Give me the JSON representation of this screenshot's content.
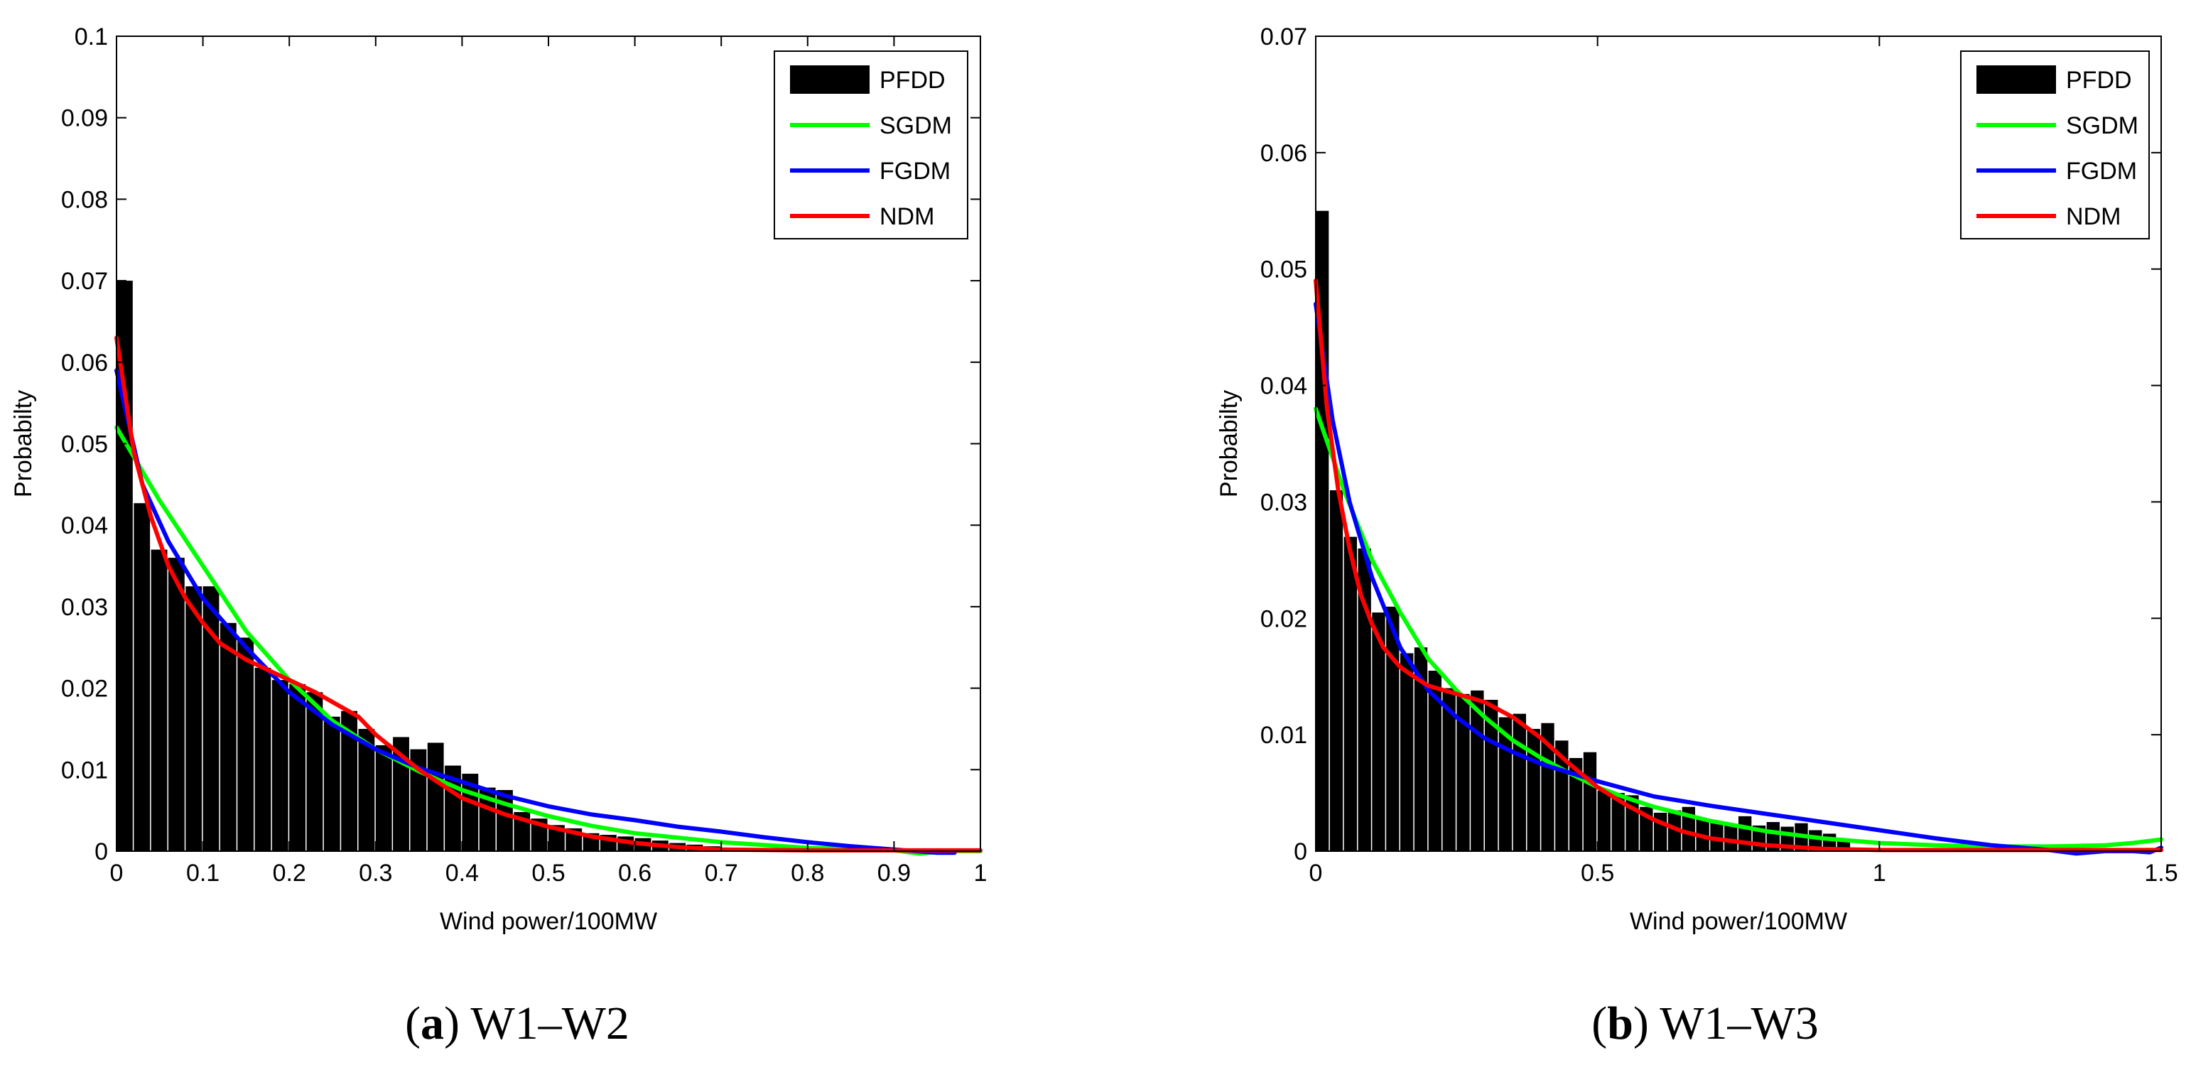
{
  "chart_data": [
    {
      "type": "bar+line",
      "panel_letter": "a",
      "caption": "W1–W2",
      "title": "",
      "xlabel": "Wind power/100MW",
      "ylabel": "Probabilty",
      "xlim": [
        0,
        1
      ],
      "ylim": [
        0,
        0.1
      ],
      "xticks": [
        0,
        0.1,
        0.2,
        0.3,
        0.4,
        0.5,
        0.6,
        0.7,
        0.8,
        0.9,
        1
      ],
      "xtick_labels": [
        "0",
        "0.1",
        "0.2",
        "0.3",
        "0.4",
        "0.5",
        "0.6",
        "0.7",
        "0.8",
        "0.9",
        "1"
      ],
      "yticks": [
        0,
        0.01,
        0.02,
        0.03,
        0.04,
        0.05,
        0.06,
        0.07,
        0.08,
        0.09,
        0.1
      ],
      "ytick_labels": [
        "0",
        "0.01",
        "0.02",
        "0.03",
        "0.04",
        "0.05",
        "0.06",
        "0.07",
        "0.08",
        "0.09",
        "0.1"
      ],
      "legend": {
        "placement": "top-right",
        "entries": [
          "PFDD",
          "SGDM",
          "FGDM",
          "NDM"
        ]
      },
      "bars": {
        "name": "PFDD",
        "color": "#000000",
        "bin_width": 0.02,
        "x": [
          0.0,
          0.02,
          0.04,
          0.06,
          0.08,
          0.1,
          0.12,
          0.14,
          0.16,
          0.18,
          0.2,
          0.22,
          0.24,
          0.26,
          0.28,
          0.3,
          0.32,
          0.34,
          0.36,
          0.38,
          0.4,
          0.42,
          0.44,
          0.46,
          0.48,
          0.5,
          0.52,
          0.54,
          0.56,
          0.58,
          0.6,
          0.62,
          0.64,
          0.66,
          0.68,
          0.7,
          0.72
        ],
        "values": [
          0.07,
          0.0427,
          0.037,
          0.036,
          0.0325,
          0.0325,
          0.028,
          0.0262,
          0.0225,
          0.021,
          0.0205,
          0.0195,
          0.0165,
          0.0172,
          0.015,
          0.013,
          0.014,
          0.0125,
          0.0133,
          0.0105,
          0.0095,
          0.0078,
          0.0075,
          0.0048,
          0.004,
          0.0032,
          0.0028,
          0.0022,
          0.002,
          0.0018,
          0.0016,
          0.0013,
          0.001,
          0.0008,
          0.0006,
          0.0004,
          0.0003
        ]
      },
      "series": [
        {
          "name": "SGDM",
          "color": "#00ff00",
          "x": [
            0,
            0.05,
            0.1,
            0.15,
            0.2,
            0.25,
            0.3,
            0.35,
            0.4,
            0.45,
            0.5,
            0.55,
            0.6,
            0.7,
            0.8,
            0.9,
            0.93,
            0.96,
            1.0
          ],
          "y": [
            0.052,
            0.043,
            0.035,
            0.027,
            0.021,
            0.016,
            0.0125,
            0.0098,
            0.0075,
            0.0058,
            0.0043,
            0.0031,
            0.0022,
            0.0011,
            0.0004,
            0.0001,
            -0.0003,
            0.0,
            0.0
          ]
        },
        {
          "name": "FGDM",
          "color": "#0000ff",
          "x": [
            0,
            0.03,
            0.06,
            0.1,
            0.15,
            0.2,
            0.25,
            0.3,
            0.35,
            0.4,
            0.45,
            0.5,
            0.55,
            0.6,
            0.65,
            0.7,
            0.75,
            0.8,
            0.85,
            0.9,
            0.95,
            0.97
          ],
          "y": [
            0.059,
            0.045,
            0.038,
            0.031,
            0.025,
            0.0195,
            0.0155,
            0.0125,
            0.0102,
            0.0085,
            0.0068,
            0.0055,
            0.0045,
            0.0038,
            0.003,
            0.0024,
            0.0017,
            0.0011,
            0.0006,
            0.0002,
            -0.0002,
            -0.0002
          ]
        },
        {
          "name": "NDM",
          "color": "#ff0000",
          "x": [
            0,
            0.01,
            0.02,
            0.04,
            0.06,
            0.08,
            0.1,
            0.12,
            0.15,
            0.18,
            0.2,
            0.23,
            0.25,
            0.28,
            0.3,
            0.35,
            0.4,
            0.45,
            0.5,
            0.55,
            0.6,
            0.65,
            0.7,
            0.8,
            0.9,
            1.0
          ],
          "y": [
            0.063,
            0.056,
            0.049,
            0.041,
            0.035,
            0.031,
            0.028,
            0.0255,
            0.0235,
            0.022,
            0.021,
            0.0195,
            0.0183,
            0.0165,
            0.0143,
            0.01,
            0.0065,
            0.0045,
            0.003,
            0.0018,
            0.001,
            0.0005,
            0.0002,
            0.0001,
            0.0001,
            0.0001
          ]
        }
      ]
    },
    {
      "type": "bar+line",
      "panel_letter": "b",
      "caption": "W1–W3",
      "title": "",
      "xlabel": "Wind power/100MW",
      "ylabel": "Probabilty",
      "xlim": [
        0,
        1.5
      ],
      "ylim": [
        0,
        0.07
      ],
      "xticks": [
        0,
        0.5,
        1,
        1.5
      ],
      "xtick_labels": [
        "0",
        "0.5",
        "1",
        "1.5"
      ],
      "yticks": [
        0,
        0.01,
        0.02,
        0.03,
        0.04,
        0.05,
        0.06,
        0.07
      ],
      "ytick_labels": [
        "0",
        "0.01",
        "0.02",
        "0.03",
        "0.04",
        "0.05",
        "0.06",
        "0.07"
      ],
      "legend": {
        "placement": "top-right",
        "entries": [
          "PFDD",
          "SGDM",
          "FGDM",
          "NDM"
        ]
      },
      "bars": {
        "name": "PFDD",
        "color": "#000000",
        "bin_width": 0.025,
        "x": [
          0.0,
          0.025,
          0.05,
          0.075,
          0.1,
          0.125,
          0.15,
          0.175,
          0.2,
          0.225,
          0.25,
          0.275,
          0.3,
          0.325,
          0.35,
          0.375,
          0.4,
          0.425,
          0.45,
          0.475,
          0.5,
          0.525,
          0.55,
          0.575,
          0.6,
          0.625,
          0.65,
          0.675,
          0.7,
          0.725,
          0.75,
          0.775,
          0.8,
          0.825,
          0.85,
          0.875,
          0.9,
          0.925
        ],
        "values": [
          0.055,
          0.031,
          0.027,
          0.026,
          0.0205,
          0.021,
          0.017,
          0.0175,
          0.0155,
          0.014,
          0.0135,
          0.0138,
          0.013,
          0.0115,
          0.0118,
          0.0105,
          0.011,
          0.0095,
          0.008,
          0.0085,
          0.0052,
          0.005,
          0.0048,
          0.0038,
          0.0033,
          0.0035,
          0.0038,
          0.0028,
          0.0025,
          0.0023,
          0.003,
          0.0022,
          0.0025,
          0.0021,
          0.0024,
          0.0018,
          0.0015,
          0.001
        ]
      },
      "series": [
        {
          "name": "SGDM",
          "color": "#00ff00",
          "x": [
            0,
            0.05,
            0.1,
            0.15,
            0.2,
            0.25,
            0.3,
            0.35,
            0.4,
            0.45,
            0.5,
            0.55,
            0.6,
            0.7,
            0.8,
            0.9,
            1.0,
            1.1,
            1.2,
            1.3,
            1.4,
            1.45,
            1.5
          ],
          "y": [
            0.038,
            0.031,
            0.025,
            0.0205,
            0.0165,
            0.0138,
            0.0115,
            0.0095,
            0.008,
            0.0067,
            0.0055,
            0.0046,
            0.0038,
            0.0026,
            0.0017,
            0.0011,
            0.0007,
            0.0005,
            0.0004,
            0.0004,
            0.0005,
            0.0007,
            0.001
          ]
        },
        {
          "name": "FGDM",
          "color": "#0000ff",
          "x": [
            0,
            0.03,
            0.06,
            0.1,
            0.15,
            0.2,
            0.25,
            0.3,
            0.35,
            0.4,
            0.5,
            0.6,
            0.7,
            0.8,
            0.9,
            1.0,
            1.1,
            1.2,
            1.3,
            1.35,
            1.4,
            1.45,
            1.48,
            1.5
          ],
          "y": [
            0.047,
            0.037,
            0.03,
            0.0235,
            0.0175,
            0.0138,
            0.0115,
            0.0097,
            0.0085,
            0.0075,
            0.006,
            0.0047,
            0.0039,
            0.0032,
            0.0025,
            0.0018,
            0.0011,
            0.0005,
            0.0001,
            -0.0002,
            0.0,
            0.0,
            -0.0001,
            0.0003
          ]
        },
        {
          "name": "NDM",
          "color": "#ff0000",
          "x": [
            0,
            0.02,
            0.04,
            0.06,
            0.08,
            0.1,
            0.12,
            0.15,
            0.18,
            0.2,
            0.25,
            0.3,
            0.35,
            0.4,
            0.45,
            0.5,
            0.55,
            0.6,
            0.65,
            0.7,
            0.8,
            0.9,
            1.0,
            1.2,
            1.5
          ],
          "y": [
            0.049,
            0.038,
            0.031,
            0.026,
            0.022,
            0.0195,
            0.0175,
            0.0158,
            0.0148,
            0.0142,
            0.0135,
            0.0128,
            0.0115,
            0.0097,
            0.0075,
            0.0055,
            0.004,
            0.0027,
            0.0017,
            0.0011,
            0.0005,
            0.0002,
            0.0001,
            0.0001,
            0.0001
          ]
        }
      ]
    }
  ]
}
